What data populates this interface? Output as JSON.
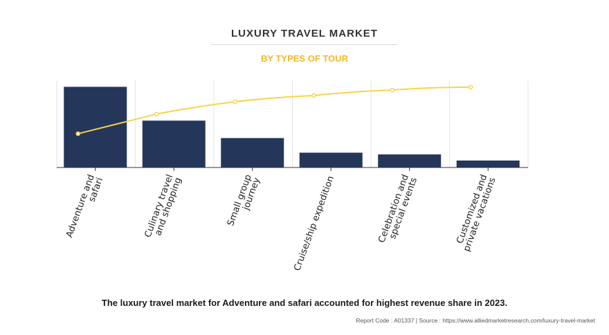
{
  "header": {
    "title": "LUXURY TRAVEL MARKET",
    "subtitle": "BY TYPES OF TOUR"
  },
  "colors": {
    "bar": "#24375a",
    "line": "#f7d44a",
    "subtitle": "#f2b632"
  },
  "chart_data": {
    "type": "bar",
    "categories": [
      [
        "Adventure and",
        "safari"
      ],
      [
        "Culinary travel",
        "and shopping"
      ],
      [
        "Small group",
        "journey"
      ],
      [
        "Cruise/ship expedition"
      ],
      [
        "Celebration and",
        "special events"
      ],
      [
        "Customized and",
        "private vacations"
      ]
    ],
    "values": [
      37,
      21.5,
      13.5,
      6.8,
      6,
      3.2
    ],
    "cumulative_line": [
      37,
      58.5,
      72,
      78.8,
      84.8,
      88
    ],
    "ylim": [
      0,
      40
    ],
    "grid": true,
    "legend": "none"
  },
  "footer": {
    "caption": "The luxury travel market for Adventure and safari accounted for highest revenue share in 2023.",
    "source": "Report Code : A01337  |  Source : https://www.alliedmarketresearch.com/luxury-travel-market"
  }
}
